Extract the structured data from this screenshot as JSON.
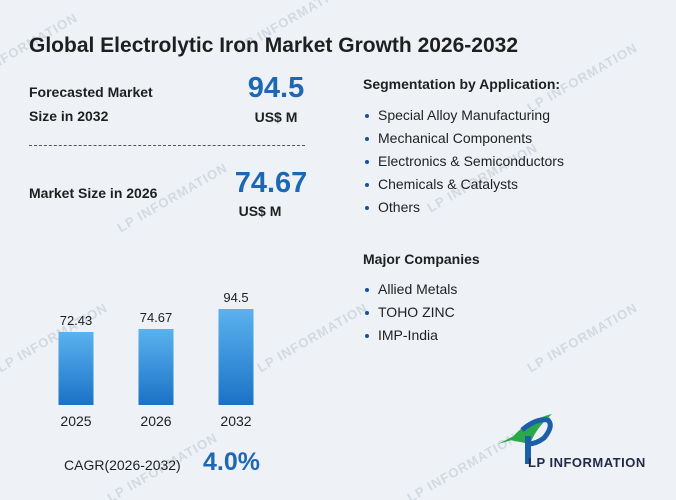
{
  "title": "Global Electrolytic Iron Market Growth 2026-2032",
  "forecast": {
    "label_line1": "Forecasted Market",
    "label_line2": "Size in 2032",
    "value": "94.5",
    "unit": "US$ M"
  },
  "current": {
    "label": "Market Size in 2026",
    "value": "74.67",
    "unit": "US$ M"
  },
  "segmentation": {
    "heading": "Segmentation by Application:",
    "items": [
      "Special Alloy Manufacturing",
      "Mechanical Components",
      "Electronics & Semiconductors",
      "Chemicals & Catalysts",
      "Others"
    ]
  },
  "companies": {
    "heading": "Major Companies",
    "items": [
      "Allied Metals",
      "TOHO ZINC",
      "IMP-India"
    ]
  },
  "cagr": {
    "label": "CAGR(2026-2032)",
    "value": "4.0%"
  },
  "logo": {
    "text": "LP INFORMATION"
  },
  "watermark_text": "LP INFORMATION",
  "colors": {
    "accent": "#1e68b3",
    "bar_top": "#5bb2ee",
    "bar_bottom": "#1b72c6",
    "logo_green": "#2aa84a",
    "logo_blue": "#1d5ea8"
  },
  "chart_data": {
    "type": "bar",
    "categories": [
      "2025",
      "2026",
      "2032"
    ],
    "values": [
      72.43,
      74.67,
      94.5
    ],
    "data_labels": [
      "72.43",
      "74.67",
      "94.5"
    ],
    "ylim": [
      0,
      100
    ],
    "grid": false,
    "legend": "none"
  }
}
